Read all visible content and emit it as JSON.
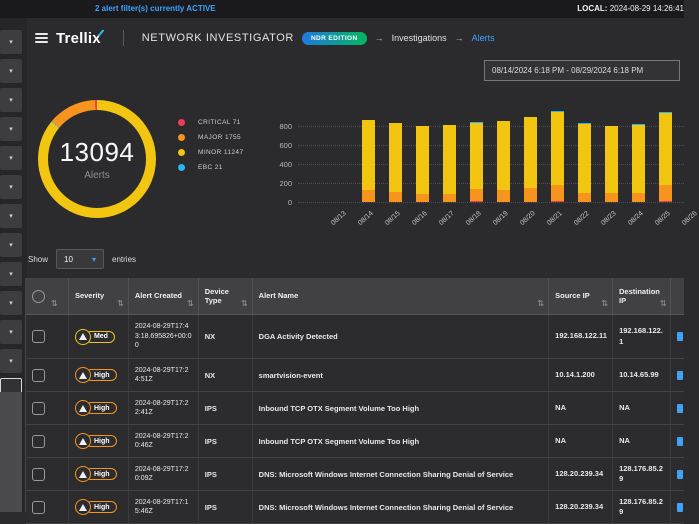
{
  "top_bar": {
    "filter_notice": "2 alert filter(s) currently ACTIVE",
    "local_label": "LOCAL:",
    "local_time": "2024-08-29 14:26:41"
  },
  "header": {
    "brand": "Trellix",
    "product": "NETWORK INVESTIGATOR",
    "edition_badge": "NDR EDITION",
    "breadcrumb": [
      "Investigations",
      "Alerts"
    ]
  },
  "filters": {
    "date_range": "08/14/2024 6:18 PM - 08/29/2024 6:18 PM"
  },
  "sidebar": {
    "collapsed_filter_count": 12
  },
  "donut": {
    "total": "13094",
    "unit": "Alerts",
    "legend": [
      {
        "label": "CRITICAL",
        "value": 71,
        "color": "#f23a5b"
      },
      {
        "label": "MAJOR",
        "value": 1755,
        "color": "#f7941e"
      },
      {
        "label": "MINOR",
        "value": 11247,
        "color": "#f2c511"
      },
      {
        "label": "EBC",
        "value": 21,
        "color": "#29b6f6"
      }
    ],
    "ring_order": [
      "MINOR",
      "EBC",
      "MAJOR",
      "CRITICAL"
    ]
  },
  "chart_data": {
    "type": "bar",
    "stacked": true,
    "categories": [
      "08/13",
      "08/14",
      "08/15",
      "08/16",
      "08/17",
      "08/18",
      "08/19",
      "08/20",
      "08/21",
      "08/22",
      "08/23",
      "08/24",
      "08/25"
    ],
    "series": [
      {
        "name": "CRITICAL",
        "color": "#f23a5b",
        "values": [
          0,
          0,
          0,
          0,
          0,
          8,
          0,
          0,
          15,
          0,
          0,
          0,
          12
        ]
      },
      {
        "name": "MAJOR",
        "color": "#f7941e",
        "values": [
          0,
          130,
          105,
          85,
          85,
          125,
          130,
          150,
          165,
          100,
          90,
          100,
          165
        ]
      },
      {
        "name": "MINOR",
        "color": "#f2c511",
        "values": [
          0,
          730,
          725,
          715,
          725,
          700,
          720,
          745,
          770,
          725,
          715,
          715,
          765
        ]
      },
      {
        "name": "EBC",
        "color": "#29b6f6",
        "values": [
          0,
          0,
          0,
          0,
          0,
          5,
          0,
          0,
          6,
          2,
          0,
          2,
          6
        ]
      }
    ],
    "title": "",
    "xlabel": "",
    "ylabel": "",
    "ylim": [
      0,
      1000
    ],
    "yticks": [
      0,
      200,
      400,
      600,
      800
    ],
    "next_label_partial": "08/26",
    "grid": "dotted-horizontal",
    "legend_position": "none"
  },
  "table_controls": {
    "show_label": "Show",
    "page_size": "10",
    "entries_label": "entries"
  },
  "severity_colors": {
    "Med": "#f2c511",
    "High": "#f7941e"
  },
  "table": {
    "columns": [
      "Severity",
      "Alert Created",
      "Device Type",
      "Alert Name",
      "Source IP",
      "Destination IP"
    ],
    "rows": [
      {
        "severity": "Med",
        "created": "2024-08-29T17:43:18.695826+00:00",
        "device_type": "NX",
        "alert_name": "DGA Activity Detected",
        "source_ip": "192.168.122.11",
        "dest_ip": "192.168.122.1"
      },
      {
        "severity": "High",
        "created": "2024-08-29T17:24:51Z",
        "device_type": "NX",
        "alert_name": "smartvision-event",
        "source_ip": "10.14.1.200",
        "dest_ip": "10.14.65.99"
      },
      {
        "severity": "High",
        "created": "2024-08-29T17:22:41Z",
        "device_type": "IPS",
        "alert_name": "Inbound TCP OTX Segment Volume Too High",
        "source_ip": "NA",
        "dest_ip": "NA"
      },
      {
        "severity": "High",
        "created": "2024-08-29T17:20:46Z",
        "device_type": "IPS",
        "alert_name": "Inbound TCP OTX Segment Volume Too High",
        "source_ip": "NA",
        "dest_ip": "NA"
      },
      {
        "severity": "High",
        "created": "2024-08-29T17:20:09Z",
        "device_type": "IPS",
        "alert_name": "DNS: Microsoft Windows Internet Connection Sharing Denial of Service",
        "source_ip": "128.20.239.34",
        "dest_ip": "128.176.85.29"
      },
      {
        "severity": "High",
        "created": "2024-08-29T17:15:46Z",
        "device_type": "IPS",
        "alert_name": "DNS: Microsoft Windows Internet Connection Sharing Denial of Service",
        "source_ip": "128.20.239.34",
        "dest_ip": "128.176.85.29"
      }
    ]
  }
}
